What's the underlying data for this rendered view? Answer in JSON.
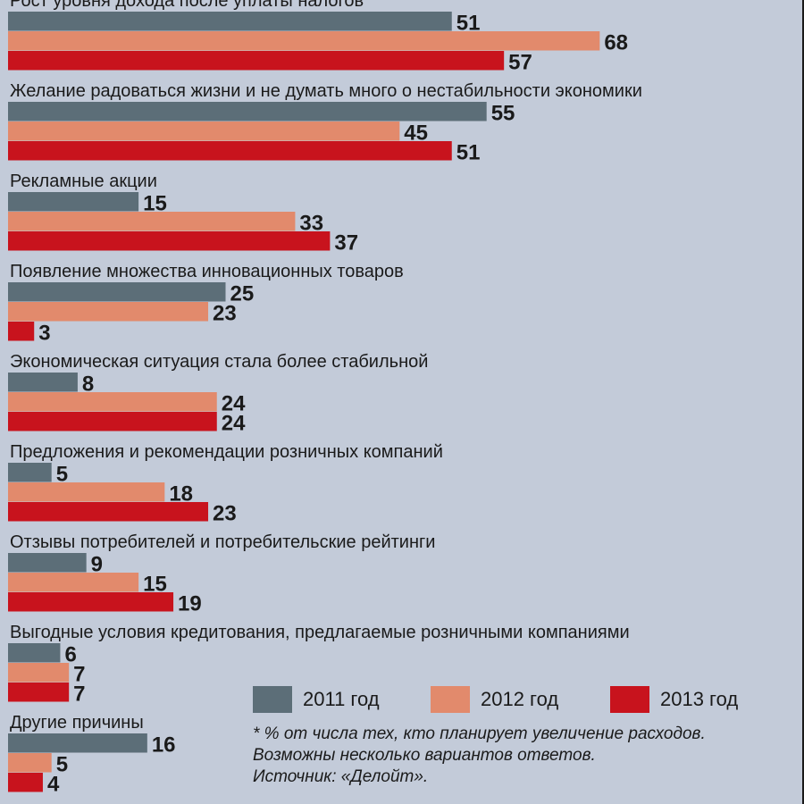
{
  "chart_data": {
    "type": "bar",
    "orientation": "horizontal",
    "categories": [
      "Рост уровня дохода после уплаты налогов",
      "Желание радоваться жизни и не думать много о нестабильности экономики",
      "Рекламные акции",
      "Появление множества инновационных товаров",
      "Экономическая ситуация стала более стабильной",
      "Предложения и рекомендации розничных компаний",
      "Отзывы потребителей и потребительские рейтинги",
      "Выгодные условия кредитования, предлагаемые розничными компаниями",
      "Другие причины"
    ],
    "series": [
      {
        "name": "2011 год",
        "color": "#5c6e78",
        "values": [
          51,
          55,
          15,
          25,
          8,
          5,
          9,
          6,
          16
        ]
      },
      {
        "name": "2012 год",
        "color": "#e28a6c",
        "values": [
          68,
          45,
          33,
          23,
          24,
          18,
          15,
          7,
          5
        ]
      },
      {
        "name": "2013 год",
        "color": "#c8131d",
        "values": [
          57,
          51,
          37,
          3,
          24,
          23,
          19,
          7,
          4
        ]
      }
    ],
    "legend_position": "bottom-right",
    "grid": false,
    "data_labels": true
  },
  "notes": [
    "* % от числа тех, кто планирует увеличение расходов.",
    "Возможны несколько вариантов ответов.",
    "Источник: «Делойт»."
  ]
}
